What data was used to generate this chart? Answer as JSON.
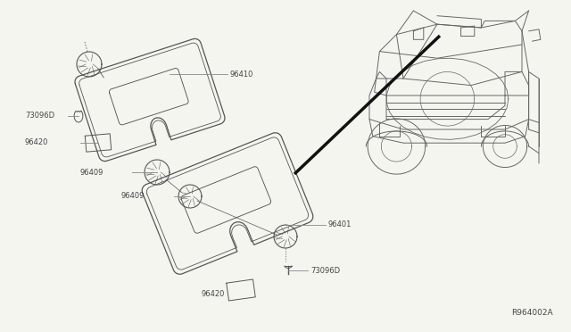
{
  "background_color": "#f5f5f0",
  "line_color": "#555555",
  "label_color": "#444444",
  "ref_code": "R964002A",
  "font_size": 6.0,
  "car_line_color": "#666666",
  "thick_line_color": "#111111",
  "leader_color": "#888888"
}
